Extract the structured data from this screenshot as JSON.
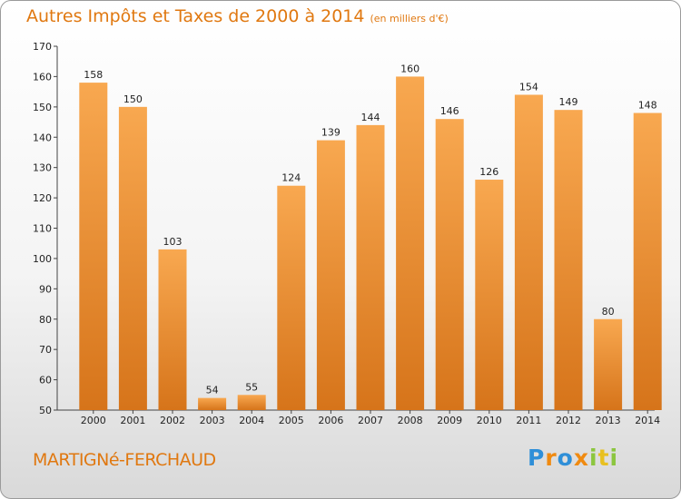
{
  "title": "Autres Impôts et Taxes de 2000 à 2014",
  "unit": "(en milliers d'€)",
  "commune": "MARTIGNé-FERCHAUD",
  "logo": "Proxiti",
  "colors": {
    "bar_light": "#f7a54b",
    "bar_dark": "#d6741a",
    "title": "#e07810"
  },
  "chart_data": {
    "type": "bar",
    "categories": [
      "2000",
      "2001",
      "2002",
      "2003",
      "2004",
      "2005",
      "2006",
      "2007",
      "2008",
      "2009",
      "2010",
      "2011",
      "2012",
      "2013",
      "2014"
    ],
    "values": [
      158,
      150,
      103,
      54,
      55,
      124,
      139,
      144,
      160,
      146,
      126,
      154,
      149,
      80,
      148
    ],
    "ylim": [
      50,
      170
    ],
    "yticks": [
      50,
      60,
      70,
      80,
      90,
      100,
      110,
      120,
      130,
      140,
      150,
      160,
      170
    ],
    "grid": false,
    "legend": "none"
  }
}
